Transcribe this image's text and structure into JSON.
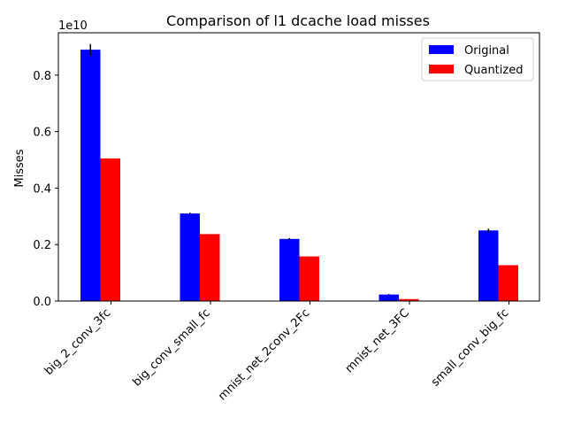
{
  "chart_data": {
    "type": "bar",
    "title": "Comparison of l1 dcache load misses",
    "xlabel": "",
    "ylabel": "Misses",
    "y_offset_label": "1e10",
    "y_scale": 10000000000,
    "ylim": [
      0,
      0.95
    ],
    "yticks": [
      0.0,
      0.2,
      0.4,
      0.6,
      0.8
    ],
    "ytick_labels": [
      "0.0",
      "0.2",
      "0.4",
      "0.6",
      "0.8"
    ],
    "categories": [
      "big_2_conv_3fc",
      "big_conv_small_fc",
      "mnist_net_2conv_2Fc",
      "mnist_net_3FC",
      "small_conv_big_fc"
    ],
    "series": [
      {
        "name": "Original",
        "color": "#0000ff",
        "values": [
          0.89,
          0.31,
          0.22,
          0.023,
          0.25
        ],
        "errors": [
          0.02,
          0.003,
          0.003,
          0.002,
          0.006
        ]
      },
      {
        "name": "Quantized",
        "color": "#ff0000",
        "values": [
          0.505,
          0.237,
          0.158,
          0.007,
          0.127
        ],
        "errors": [
          0,
          0,
          0,
          0,
          0
        ]
      }
    ],
    "grid": false,
    "legend_position": "top-right"
  }
}
